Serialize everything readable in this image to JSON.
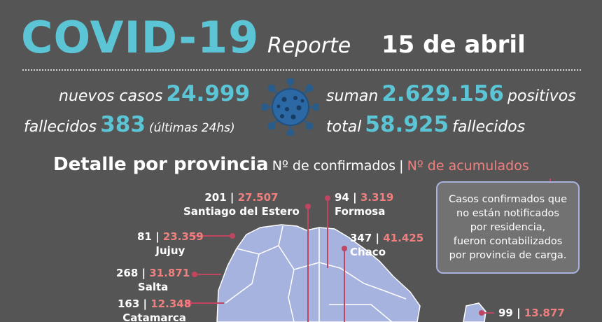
{
  "header": {
    "title": "COVID-19",
    "subtitle": "Reporte",
    "date": "15 de abril"
  },
  "stats": {
    "new_cases_label": "nuevos casos",
    "new_cases_value": "24.999",
    "deaths_label": "fallecidos",
    "deaths_value": "383",
    "deaths_period": "(últimas 24hs)",
    "total_pos_label": "suman",
    "total_pos_value": "2.629.156",
    "total_pos_suffix": "positivos",
    "total_deaths_label": "total",
    "total_deaths_value": "58.925",
    "total_deaths_suffix": "fallecidos"
  },
  "detail": {
    "heading": "Detalle por provincia",
    "confirmed_label": "Nº de confirmados",
    "separator": "|",
    "accumulated_label": "Nº de acumulados"
  },
  "note": {
    "lines": [
      "Casos confirmados que",
      "no están notificados",
      "por residencia,",
      "fueron contabilizados",
      "por provincia de carga."
    ]
  },
  "provinces": [
    {
      "name": "Santiago del Estero",
      "confirmed": "201",
      "accumulated": "27.507"
    },
    {
      "name": "Formosa",
      "confirmed": "94",
      "accumulated": "3.319"
    },
    {
      "name": "Jujuy",
      "confirmed": "81",
      "accumulated": "23.359"
    },
    {
      "name": "Chaco",
      "confirmed": "347",
      "accumulated": "41.425"
    },
    {
      "name": "Salta",
      "confirmed": "268",
      "accumulated": "31.871"
    },
    {
      "name": "Catamarca",
      "confirmed": "163",
      "accumulated": "12.348"
    },
    {
      "name": "",
      "confirmed": "99",
      "accumulated": "13.877"
    }
  ],
  "colors": {
    "background": "#555555",
    "accent": "#5bc5d6",
    "accumulated": "#f07f7f",
    "map_fill": "#a7b3df",
    "leader_line": "#c04560"
  }
}
